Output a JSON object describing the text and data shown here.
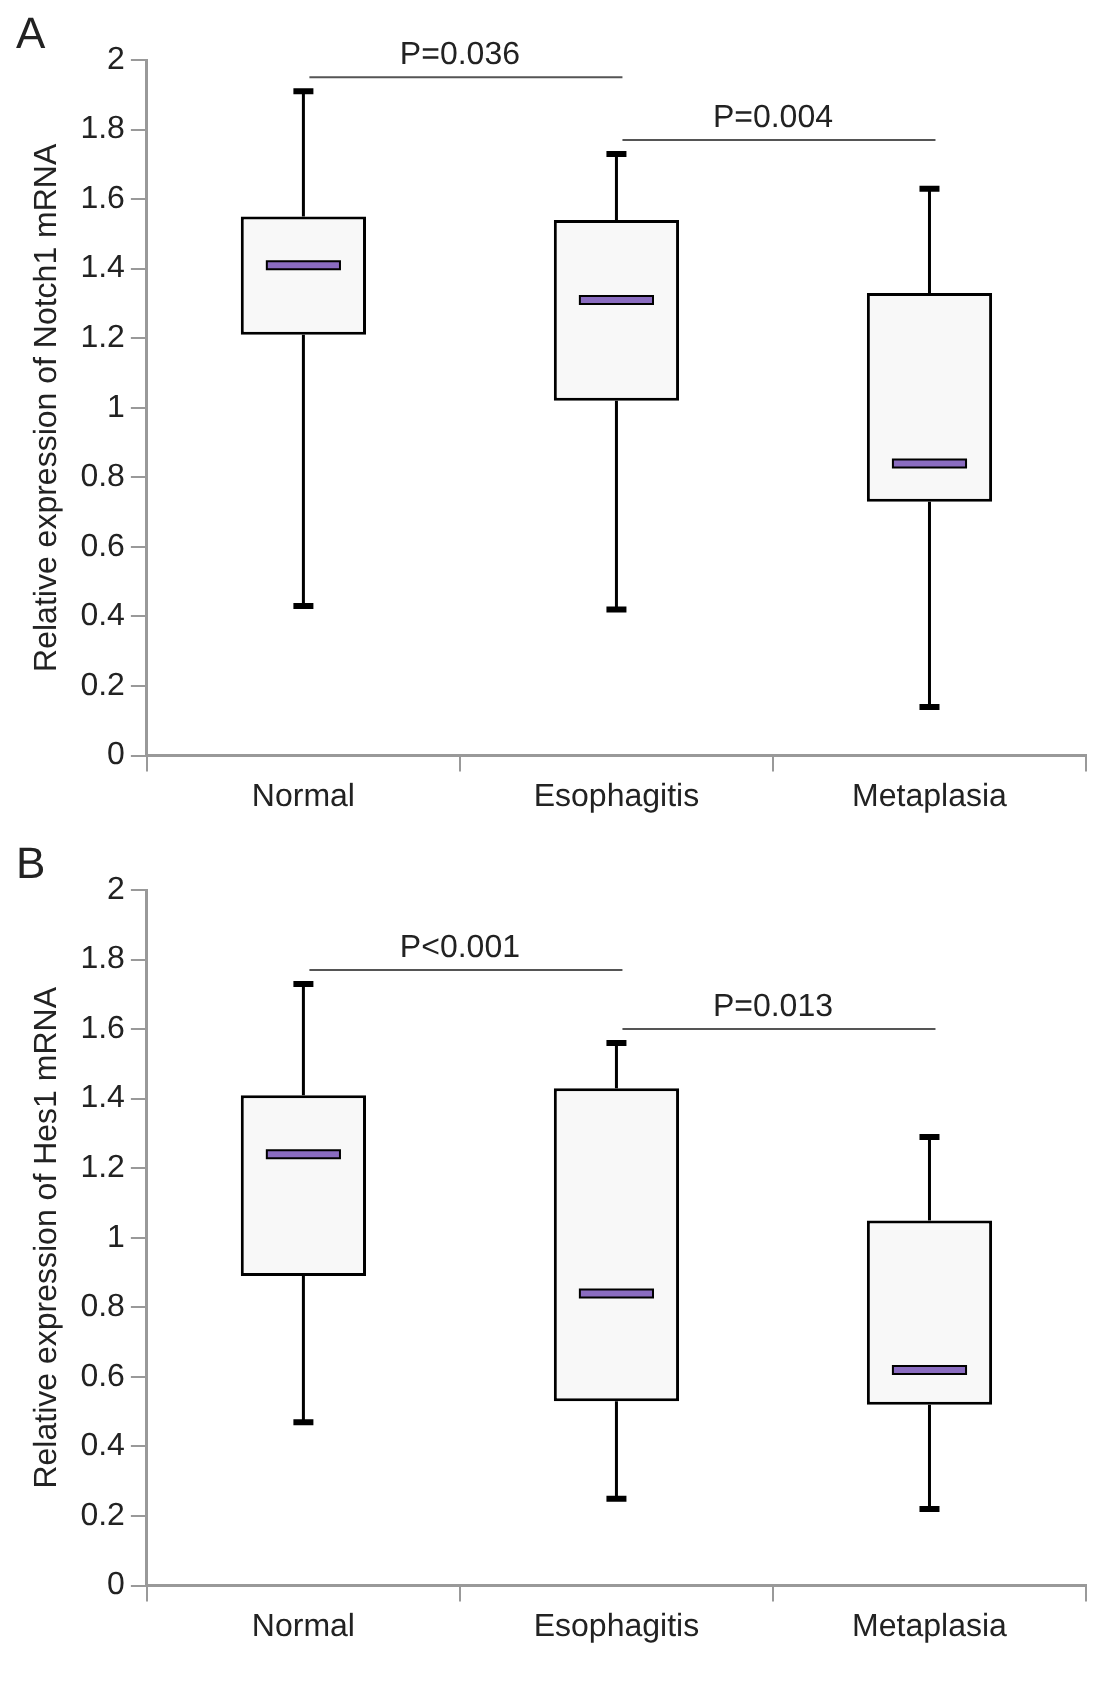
{
  "chart_data": [
    {
      "type": "box",
      "title": "A",
      "ylabel": "Relative expression of Notch1 mRNA",
      "categories": [
        "Normal",
        "Esophagitis",
        "Metaplasia"
      ],
      "boxes": [
        {
          "low": 0.43,
          "q1": 1.21,
          "median": 1.41,
          "q3": 1.55,
          "high": 1.91
        },
        {
          "low": 0.42,
          "q1": 1.02,
          "median": 1.31,
          "q3": 1.54,
          "high": 1.73
        },
        {
          "low": 0.14,
          "q1": 0.73,
          "median": 0.84,
          "q3": 1.33,
          "high": 1.63
        }
      ],
      "ylim": [
        0,
        2
      ],
      "yticks": [
        0,
        0.2,
        0.4,
        0.6,
        0.8,
        1,
        1.2,
        1.4,
        1.6,
        1.8,
        2
      ],
      "grid": false,
      "legend": false,
      "annotations": [
        "P=0.036",
        "P=0.004"
      ]
    },
    {
      "type": "box",
      "title": "B",
      "ylabel": "Relative expression of Hes1 mRNA",
      "categories": [
        "Normal",
        "Esophagitis",
        "Metaplasia"
      ],
      "boxes": [
        {
          "low": 0.47,
          "q1": 0.89,
          "median": 1.24,
          "q3": 1.41,
          "high": 1.73
        },
        {
          "low": 0.25,
          "q1": 0.53,
          "median": 0.84,
          "q3": 1.43,
          "high": 1.56
        },
        {
          "low": 0.22,
          "q1": 0.52,
          "median": 0.62,
          "q3": 1.05,
          "high": 1.29
        }
      ],
      "ylim": [
        0,
        2
      ],
      "yticks": [
        0,
        0.2,
        0.4,
        0.6,
        0.8,
        1,
        1.2,
        1.4,
        1.6,
        1.8,
        2
      ],
      "grid": false,
      "legend": false,
      "annotations": [
        "P<0.001",
        "P=0.013"
      ]
    }
  ]
}
